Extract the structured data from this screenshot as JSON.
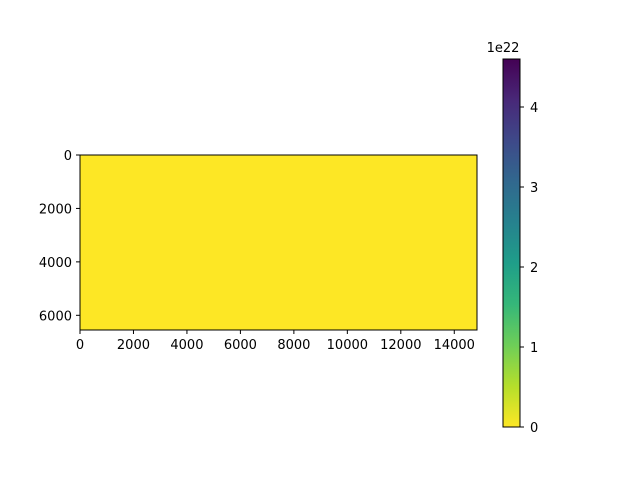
{
  "chart_data": {
    "type": "heatmap",
    "title": "",
    "xlabel": "",
    "ylabel": "",
    "x_ticks": [
      0,
      2000,
      4000,
      6000,
      8000,
      10000,
      12000,
      14000
    ],
    "x_tick_labels": [
      "0",
      "2000",
      "4000",
      "6000",
      "8000",
      "10000",
      "12000",
      "14000"
    ],
    "y_ticks": [
      0,
      2000,
      4000,
      6000
    ],
    "y_tick_labels": [
      "0",
      "2000",
      "4000",
      "6000"
    ],
    "xlim": [
      0,
      14850
    ],
    "ylim": [
      6550,
      0
    ],
    "image_value": 0,
    "colormap": "viridis_r",
    "colorbar": {
      "range": [
        0,
        4.6
      ],
      "ticks": [
        0,
        1,
        2,
        3,
        4
      ],
      "tick_labels": [
        "0",
        "1",
        "2",
        "3",
        "4"
      ],
      "offset_label": "1e22",
      "colors": [
        "#fde725",
        "#b5de2b",
        "#6ece58",
        "#35b779",
        "#1f9e89",
        "#26828e",
        "#31688e",
        "#3e4989",
        "#482878",
        "#440154"
      ]
    }
  }
}
